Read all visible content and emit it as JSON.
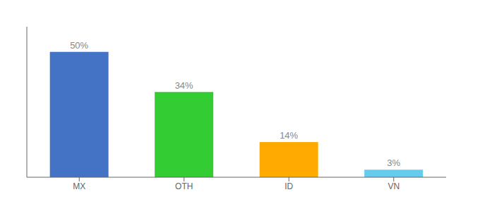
{
  "chart_data": {
    "type": "bar",
    "categories": [
      "MX",
      "OTH",
      "ID",
      "VN"
    ],
    "values": [
      50,
      34,
      14,
      3
    ],
    "value_labels": [
      "50%",
      "34%",
      "14%",
      "3%"
    ],
    "colors": [
      "#4472c4",
      "#33cc33",
      "#ffaa00",
      "#66ccee"
    ],
    "ylim": [
      0,
      60
    ],
    "data_labels": true,
    "tick_labels": "x",
    "grid": false
  }
}
